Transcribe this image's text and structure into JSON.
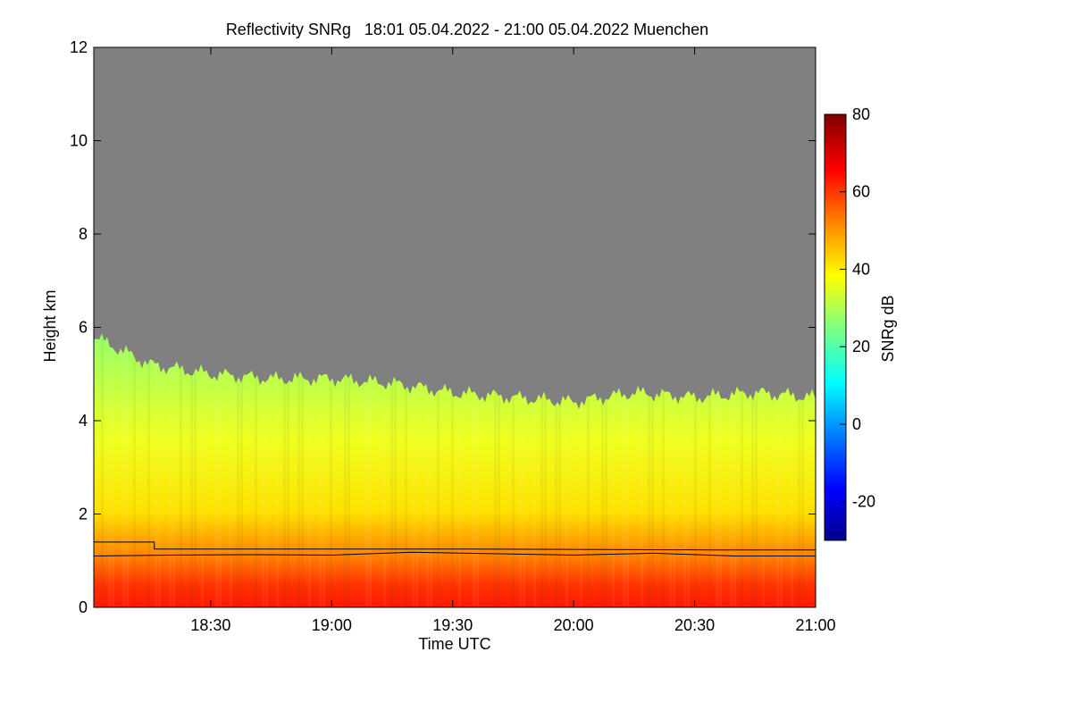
{
  "chart_data": {
    "type": "heatmap",
    "title": "Reflectivity SNRg   18:01 05.04.2022 - 21:00 05.04.2022 Muenchen",
    "xlabel": "Time UTC",
    "ylabel": "Height km",
    "xlim": [
      "18:01",
      "21:00"
    ],
    "ylim": [
      0,
      12
    ],
    "x_ticks": [
      "18:30",
      "19:00",
      "19:30",
      "20:00",
      "20:30",
      "21:00"
    ],
    "y_ticks": [
      "0",
      "2",
      "4",
      "6",
      "8",
      "10",
      "12"
    ],
    "colorbar": {
      "label": "SNRg dB",
      "range": [
        -30,
        80
      ],
      "ticks": [
        "-20",
        "0",
        "20",
        "40",
        "60",
        "80"
      ],
      "colors": [
        "#00008b",
        "#0000ff",
        "#0080ff",
        "#00ffff",
        "#80ff80",
        "#ffff00",
        "#ff8000",
        "#ff0000",
        "#800000"
      ]
    },
    "background_color": "#808080",
    "signal_top_km": {
      "times": [
        "18:01",
        "18:15",
        "18:30",
        "18:45",
        "19:00",
        "19:15",
        "19:30",
        "19:45",
        "20:00",
        "20:15",
        "20:30",
        "20:45",
        "21:00"
      ],
      "values": [
        5.8,
        5.2,
        5.0,
        4.9,
        4.9,
        4.8,
        4.6,
        4.5,
        4.4,
        4.6,
        4.5,
        4.6,
        4.5
      ]
    },
    "lines": [
      {
        "times": [
          "18:01",
          "18:16",
          "18:16",
          "19:35",
          "20:35",
          "21:00"
        ],
        "values": [
          1.4,
          1.4,
          1.25,
          1.25,
          1.23,
          1.23
        ]
      },
      {
        "times": [
          "18:01",
          "18:20",
          "18:40",
          "19:00",
          "19:20",
          "19:40",
          "20:00",
          "20:20",
          "20:40",
          "21:00"
        ],
        "values": [
          1.1,
          1.12,
          1.13,
          1.12,
          1.18,
          1.15,
          1.12,
          1.16,
          1.1,
          1.1
        ]
      }
    ]
  }
}
